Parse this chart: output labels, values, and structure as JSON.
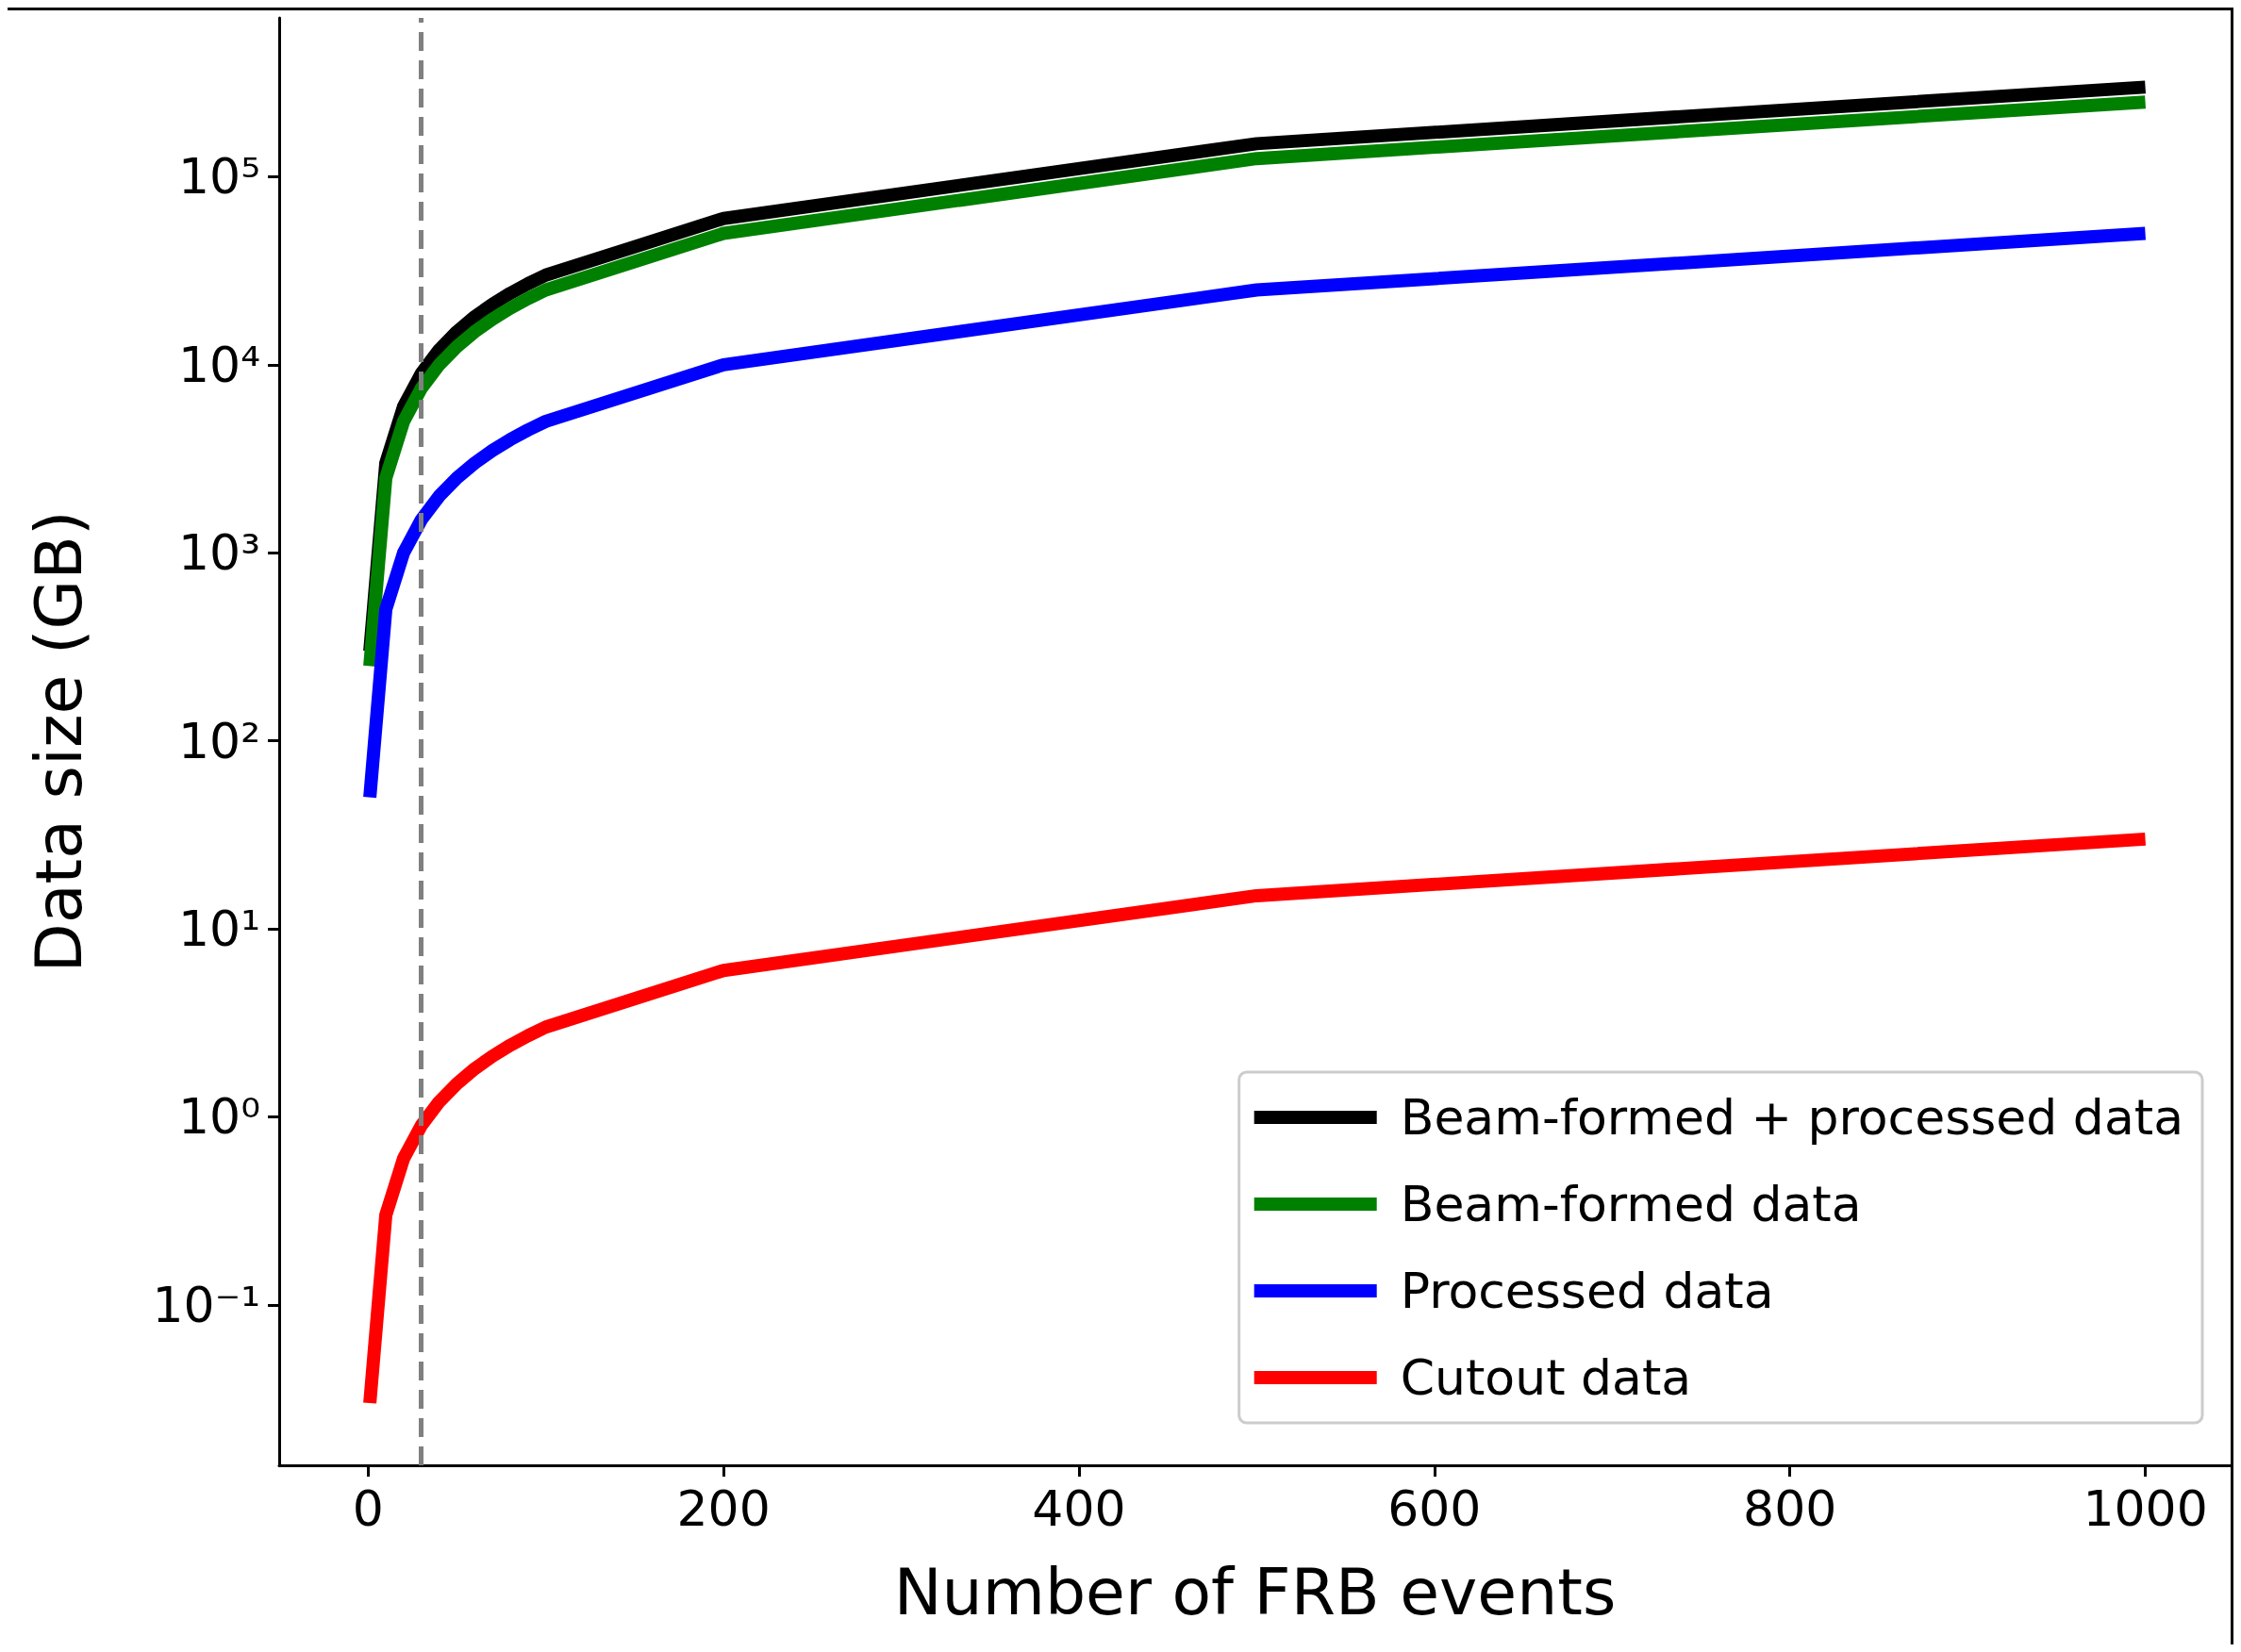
{
  "chart_data": {
    "type": "line",
    "xlabel": "Number of FRB events",
    "ylabel": "Data size (GB)",
    "log": "y",
    "grid": false,
    "legend": "bottom right",
    "marker": "none",
    "line_style": "solid",
    "x": [
      1,
      10,
      20,
      30,
      40,
      50,
      60,
      70,
      80,
      90,
      100,
      200,
      500,
      1000
    ],
    "xlim": [
      -50,
      1048
    ],
    "xticks": [
      0,
      200,
      400,
      600,
      800,
      1000
    ],
    "ylim": [
      0.014,
      700000
    ],
    "yticks": [
      {
        "value": 0.1,
        "label": "10⁻¹"
      },
      {
        "value": 1,
        "label": "10⁰"
      },
      {
        "value": 10,
        "label": "10¹"
      },
      {
        "value": 100,
        "label": "10²"
      },
      {
        "value": 1000,
        "label": "10³"
      },
      {
        "value": 10000,
        "label": "10⁴"
      },
      {
        "value": 100000,
        "label": "10⁵"
      }
    ],
    "series": [
      {
        "name": "Beam-formed + processed data",
        "color": "#000000",
        "values": [
          300,
          3000,
          6000,
          9000,
          12000,
          15000,
          18000,
          21000,
          24000,
          27000,
          30000,
          60000,
          150000,
          300000
        ]
      },
      {
        "name": "Beam-formed data",
        "color": "#008000",
        "values": [
          250,
          2500,
          5000,
          7500,
          10000,
          12500,
          15000,
          17500,
          20000,
          22500,
          25000,
          50000,
          125000,
          250000
        ]
      },
      {
        "name": "Processed data",
        "color": "#0000ff",
        "values": [
          50,
          500,
          1000,
          1500,
          2000,
          2500,
          3000,
          3500,
          4000,
          4500,
          5000,
          10000,
          25000,
          50000
        ]
      },
      {
        "name": "Cutout data",
        "color": "#ff0000",
        "values": [
          0.03,
          0.3,
          0.6,
          0.9,
          1.2,
          1.5,
          1.8,
          2.1,
          2.4,
          2.7,
          3,
          6,
          15,
          30
        ]
      }
    ],
    "ref_lines": [
      {
        "axis": "x",
        "value": 30,
        "label": null,
        "color": "#808080",
        "line_style": "dashed"
      }
    ]
  }
}
